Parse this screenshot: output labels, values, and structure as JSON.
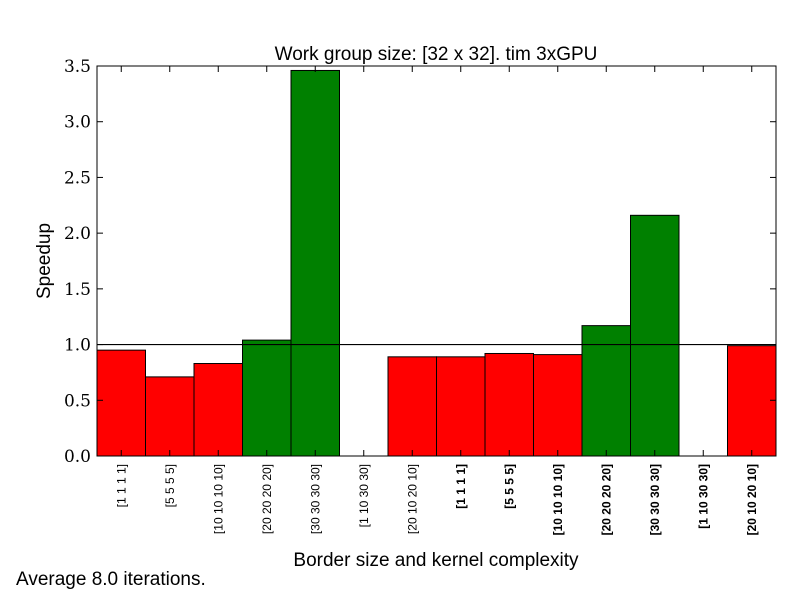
{
  "footnote": "Average 8.0 iterations.",
  "chart_data": {
    "type": "bar",
    "title": "Work group size: [32 x 32]. tim 3xGPU",
    "xlabel": "Border size and kernel complexity",
    "ylabel": "Speedup",
    "ylim": [
      0,
      3.5
    ],
    "yticks": [
      "0.0",
      "0.5",
      "1.0",
      "1.5",
      "2.0",
      "2.5",
      "3.0",
      "3.5"
    ],
    "reference_line": 1.0,
    "grid": false,
    "categories": [
      "[1 1 1 1]",
      "[5 5 5 5]",
      "[10 10 10 10]",
      "[20 20 20 20]",
      "[30 30 30 30]",
      "[1 10 30 30]",
      "[20 10 20 10]",
      "[1 1 1 1]",
      "[5 5 5 5]",
      "[10 10 10 10]",
      "[20 20 20 20]",
      "[30 30 30 30]",
      "[1 10 30 30]",
      "[20 10 20 10]"
    ],
    "bold_categories": [
      false,
      false,
      false,
      false,
      false,
      false,
      false,
      true,
      true,
      true,
      true,
      true,
      true,
      true
    ],
    "values": [
      0.95,
      0.71,
      0.83,
      1.04,
      3.46,
      0.0,
      0.89,
      0.89,
      0.92,
      0.91,
      1.17,
      2.16,
      0.0,
      0.99
    ],
    "colors": {
      "above": "#008000",
      "below": "#ff0000",
      "edge": "#000000"
    }
  }
}
